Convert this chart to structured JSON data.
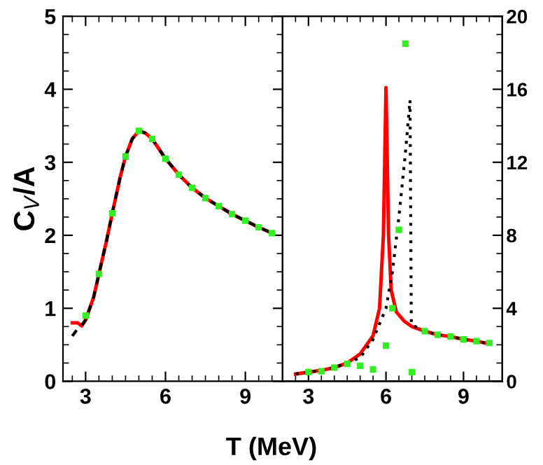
{
  "chart_data": [
    {
      "type": "line",
      "xlabel": "T (MeV)",
      "ylabel": "C$_{V}$/A",
      "xlim": [
        2.15,
        10.4
      ],
      "xticks": [
        3,
        6,
        9
      ],
      "ylim": [
        0,
        5
      ],
      "yticks": [
        0,
        1,
        2,
        3,
        4,
        5
      ],
      "grid": false,
      "series": [
        {
          "color": "#ff0000",
          "line_style": "solid",
          "marker": "none",
          "x": [
            2.5,
            2.7,
            2.85,
            3.0,
            3.3,
            3.5,
            3.8,
            4.0,
            4.3,
            4.5,
            4.75,
            5.0,
            5.25,
            5.5,
            6.0,
            6.5,
            7.0,
            7.5,
            8.0,
            8.5,
            9.0,
            9.5,
            10.0
          ],
          "values": [
            0.8,
            0.8,
            0.76,
            0.84,
            1.15,
            1.47,
            1.95,
            2.3,
            2.8,
            3.08,
            3.32,
            3.43,
            3.4,
            3.32,
            3.05,
            2.83,
            2.65,
            2.51,
            2.4,
            2.29,
            2.2,
            2.11,
            2.03
          ]
        },
        {
          "color": "#000000",
          "line_style": "dashed",
          "marker": "none",
          "x": [
            2.5,
            2.7,
            2.85,
            3.0,
            3.3,
            3.5,
            3.8,
            4.0,
            4.3,
            4.5,
            4.75,
            5.0,
            5.25,
            5.5,
            6.0,
            6.5,
            7.0,
            7.5,
            8.0,
            8.5,
            9.0,
            9.5,
            10.0
          ],
          "values": [
            0.62,
            0.72,
            0.76,
            0.84,
            1.15,
            1.47,
            1.95,
            2.3,
            2.8,
            3.08,
            3.32,
            3.43,
            3.4,
            3.32,
            3.05,
            2.83,
            2.65,
            2.51,
            2.4,
            2.29,
            2.2,
            2.11,
            2.03
          ]
        },
        {
          "type": "scatter",
          "color": "#33ee22",
          "marker": "square",
          "x": [
            3,
            3.5,
            4,
            4.5,
            5,
            5.5,
            6,
            6.5,
            7,
            7.5,
            8,
            8.5,
            9,
            9.5,
            10
          ],
          "values": [
            0.9,
            1.47,
            2.3,
            3.08,
            3.43,
            3.32,
            3.05,
            2.83,
            2.65,
            2.51,
            2.4,
            2.29,
            2.2,
            2.11,
            2.03
          ]
        }
      ]
    },
    {
      "type": "line",
      "xlim": [
        2.0,
        10.5
      ],
      "xticks": [
        3,
        6,
        9
      ],
      "y2lim": [
        0,
        20
      ],
      "y2ticks": [
        0,
        4,
        8,
        12,
        16,
        20
      ],
      "grid": false,
      "series": [
        {
          "axis": "y2",
          "color": "#ff0000",
          "line_style": "solid",
          "marker": "none",
          "x": [
            2.5,
            3.0,
            3.5,
            4.0,
            4.5,
            5.0,
            5.5,
            5.75,
            5.9,
            6.0,
            6.1,
            6.2,
            6.4,
            6.7,
            7.0,
            7.5,
            8.0,
            8.5,
            9.0,
            9.5,
            10.0
          ],
          "values": [
            0.4,
            0.5,
            0.6,
            0.75,
            1.0,
            1.5,
            2.5,
            4.0,
            8.0,
            16.1,
            8.0,
            5.0,
            3.8,
            3.3,
            3.0,
            2.75,
            2.55,
            2.45,
            2.3,
            2.2,
            2.05
          ]
        },
        {
          "axis": "y2",
          "color": "#000000",
          "line_style": "dotted",
          "marker": "none",
          "x": [
            2.5,
            3.0,
            3.5,
            4.0,
            4.5,
            5.0,
            5.5,
            6.0,
            6.25,
            6.5,
            6.75,
            6.93,
            6.98,
            7.5,
            8.0,
            8.5,
            9.0,
            9.5,
            10.0
          ],
          "values": [
            0.4,
            0.5,
            0.6,
            0.75,
            1.0,
            1.3,
            2.3,
            4.0,
            6.0,
            9.0,
            12.5,
            15.4,
            3.1,
            2.75,
            2.55,
            2.45,
            2.3,
            2.2,
            2.05
          ]
        },
        {
          "type": "scatter",
          "axis": "y2",
          "color": "#33ee22",
          "marker": "square",
          "x": [
            3,
            3.5,
            4,
            4.5,
            5,
            5.5,
            6,
            6.25,
            6.5,
            6.75,
            7,
            7.5,
            8,
            8.5,
            9,
            9.5,
            10
          ],
          "values": [
            0.5,
            0.55,
            0.75,
            0.95,
            0.85,
            0.65,
            1.95,
            4.0,
            8.3,
            18.5,
            0.5,
            2.75,
            2.55,
            2.45,
            2.3,
            2.2,
            2.1
          ]
        }
      ]
    }
  ]
}
